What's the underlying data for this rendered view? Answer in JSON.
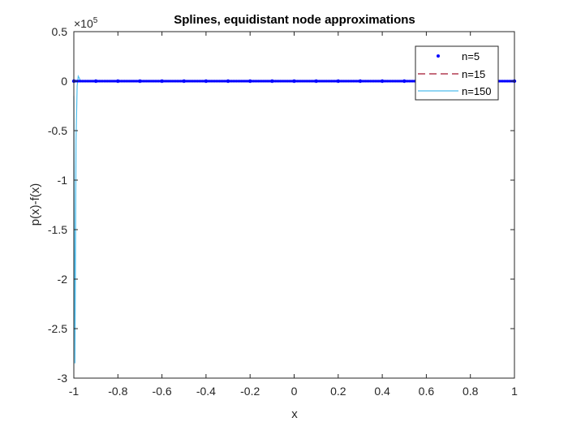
{
  "chart_data": {
    "type": "line",
    "title": "Splines, equidistant node approximations",
    "xlabel": "x",
    "ylabel": "p(x)-f(x)",
    "exponent_label": "×10",
    "exponent_power": "5",
    "xlim": [
      -1,
      1
    ],
    "ylim": [
      -3,
      0.5
    ],
    "y_scale_factor": 100000,
    "xticks": [
      -1,
      -0.8,
      -0.6,
      -0.4,
      -0.2,
      0,
      0.2,
      0.4,
      0.6,
      0.8,
      1
    ],
    "xtick_labels": [
      "-1",
      "-0.8",
      "-0.6",
      "-0.4",
      "-0.2",
      "0",
      "0.2",
      "0.4",
      "0.6",
      "0.8",
      "1"
    ],
    "yticks": [
      -3,
      -2.5,
      -2,
      -1.5,
      -1,
      -0.5,
      0,
      0.5
    ],
    "ytick_labels": [
      "-3",
      "-2.5",
      "-2",
      "-1.5",
      "-1",
      "-0.5",
      "0",
      "0.5"
    ],
    "grid": false,
    "legend_position": "top-right",
    "series": [
      {
        "name": "n=5",
        "style": "dots",
        "color": "#0000ff",
        "x": [
          -1,
          -0.9,
          -0.8,
          -0.7,
          -0.6,
          -0.5,
          -0.4,
          -0.3,
          -0.2,
          -0.1,
          0,
          0.1,
          0.2,
          0.3,
          0.4,
          0.5,
          0.6,
          0.7,
          0.8,
          0.9,
          1
        ],
        "y": [
          0,
          0,
          0,
          0,
          0,
          0,
          0,
          0,
          0,
          0,
          0,
          0,
          0,
          0,
          0,
          0,
          0,
          0,
          0,
          0,
          0
        ]
      },
      {
        "name": "n=15",
        "style": "dashed",
        "color": "#a2142f",
        "x": [
          -1,
          1
        ],
        "y": [
          0,
          0
        ]
      },
      {
        "name": "n=150",
        "style": "solid",
        "color": "#4dbeee",
        "x": [
          -1,
          -0.995,
          -0.99,
          -0.985,
          -0.98,
          -0.975,
          -0.97,
          -0.965,
          -0.96,
          1
        ],
        "y": [
          -0.15,
          -2.85,
          -0.6,
          -0.05,
          0.05,
          0.03,
          0,
          0,
          0,
          0
        ]
      }
    ]
  }
}
